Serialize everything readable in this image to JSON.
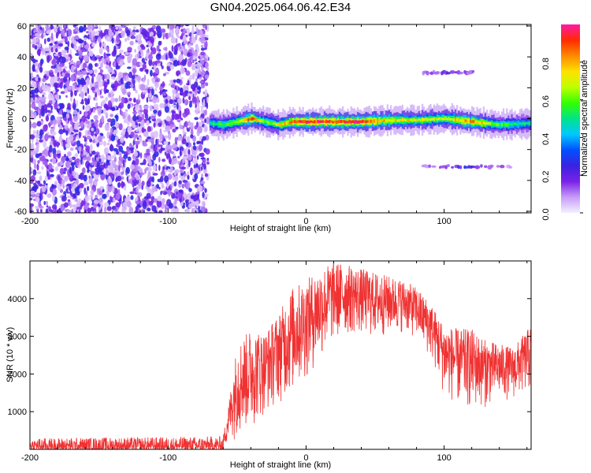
{
  "title": "GN04.2025.064.06.42.E34",
  "chart_data": [
    {
      "type": "heatmap",
      "xlabel": "Height of straight line (km)",
      "ylabel": "Frequency (Hz)",
      "xlim": [
        -200,
        163
      ],
      "ylim": [
        -61,
        61
      ],
      "xticks": [
        "-200",
        "-100",
        "0",
        "100"
      ],
      "yticks": [
        "60",
        "40",
        "20",
        "0",
        "-20",
        "-40",
        "-60"
      ],
      "colorbar": {
        "label": "Normalized spectral amplitude",
        "range": [
          0,
          1
        ],
        "ticks": [
          "0.0",
          "0.2",
          "0.4",
          "0.6",
          "0.8"
        ],
        "colors": [
          "#f4f0ff",
          "#c79cf7",
          "#7a22e8",
          "#3a22e0",
          "#0050ff",
          "#00c8ff",
          "#00e38a",
          "#34ff00",
          "#bfff00",
          "#ffe100",
          "#ff8a00",
          "#ff2a00",
          "#ff1aa8"
        ]
      },
      "noise_region": {
        "x": [
          -200,
          -71
        ],
        "freq": [
          -61,
          61
        ],
        "amplitude": 0.15
      },
      "main_band": [
        {
          "x": -70,
          "freq": -3,
          "amplitude": 0.55
        },
        {
          "x": -60,
          "freq": -4,
          "amplitude": 0.6
        },
        {
          "x": -50,
          "freq": -2,
          "amplitude": 0.7
        },
        {
          "x": -40,
          "freq": 0,
          "amplitude": 0.95
        },
        {
          "x": -30,
          "freq": -2,
          "amplitude": 0.6
        },
        {
          "x": -20,
          "freq": -4,
          "amplitude": 0.75
        },
        {
          "x": -10,
          "freq": -2,
          "amplitude": 0.9
        },
        {
          "x": 0,
          "freq": -2,
          "amplitude": 1.0
        },
        {
          "x": 20,
          "freq": -2,
          "amplitude": 0.95
        },
        {
          "x": 40,
          "freq": -2,
          "amplitude": 0.95
        },
        {
          "x": 60,
          "freq": -1,
          "amplitude": 0.8
        },
        {
          "x": 80,
          "freq": -1,
          "amplitude": 0.75
        },
        {
          "x": 100,
          "freq": 0,
          "amplitude": 0.7
        },
        {
          "x": 120,
          "freq": -2,
          "amplitude": 0.9
        },
        {
          "x": 140,
          "freq": -4,
          "amplitude": 0.6
        },
        {
          "x": 163,
          "freq": -3,
          "amplitude": 0.5
        }
      ],
      "sidebands": [
        {
          "x": [
            85,
            125
          ],
          "freq": 30,
          "amplitude": 0.2
        },
        {
          "x": [
            85,
            150
          ],
          "freq": -31,
          "amplitude": 0.2
        }
      ]
    },
    {
      "type": "line",
      "xlabel": "Height of straight line (km)",
      "ylabel": "SNR (10 * v/v)",
      "xlim": [
        -200,
        163
      ],
      "ylim": [
        0,
        5000
      ],
      "xticks": [
        "-200",
        "-100",
        "0",
        "100"
      ],
      "yticks": [
        "1000",
        "2000",
        "3000",
        "4000"
      ],
      "color": "#f03232",
      "envelope": [
        {
          "x": -200,
          "low": 0,
          "high": 300
        },
        {
          "x": -150,
          "low": 0,
          "high": 320
        },
        {
          "x": -100,
          "low": 0,
          "high": 330
        },
        {
          "x": -60,
          "low": 0,
          "high": 350
        },
        {
          "x": -55,
          "low": 200,
          "high": 1500
        },
        {
          "x": -50,
          "low": 300,
          "high": 2800
        },
        {
          "x": -40,
          "low": 500,
          "high": 3200
        },
        {
          "x": -30,
          "low": 900,
          "high": 3100
        },
        {
          "x": -20,
          "low": 1200,
          "high": 3600
        },
        {
          "x": -10,
          "low": 1400,
          "high": 4300
        },
        {
          "x": 0,
          "low": 1800,
          "high": 4500
        },
        {
          "x": 10,
          "low": 2300,
          "high": 4800
        },
        {
          "x": 20,
          "low": 2800,
          "high": 5000
        },
        {
          "x": 30,
          "low": 3000,
          "high": 4900
        },
        {
          "x": 40,
          "low": 3000,
          "high": 4800
        },
        {
          "x": 50,
          "low": 2900,
          "high": 4700
        },
        {
          "x": 60,
          "low": 3000,
          "high": 4600
        },
        {
          "x": 70,
          "low": 3100,
          "high": 4500
        },
        {
          "x": 80,
          "low": 2900,
          "high": 4300
        },
        {
          "x": 90,
          "low": 2400,
          "high": 3900
        },
        {
          "x": 100,
          "low": 1400,
          "high": 3300
        },
        {
          "x": 110,
          "low": 1100,
          "high": 3200
        },
        {
          "x": 120,
          "low": 1000,
          "high": 3200
        },
        {
          "x": 130,
          "low": 1100,
          "high": 2900
        },
        {
          "x": 140,
          "low": 1300,
          "high": 2800
        },
        {
          "x": 150,
          "low": 1300,
          "high": 2700
        },
        {
          "x": 163,
          "low": 1500,
          "high": 3300
        }
      ]
    }
  ]
}
